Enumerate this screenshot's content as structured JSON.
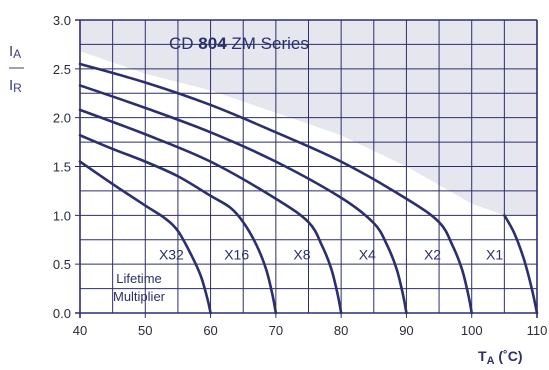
{
  "chart_data": {
    "type": "line",
    "title": "",
    "legend_box": {
      "prefix": "CD ",
      "bold": "804",
      "suffix": " ZM Series"
    },
    "xlabel_main": "T",
    "xlabel_sub": "A",
    "xlabel_unit": " (˚C)",
    "ylabel_top": "I",
    "ylabel_top_sub": "A",
    "ylabel_dash": "—",
    "ylabel_bottom": "I",
    "ylabel_bottom_sub": "R",
    "xlim": [
      40,
      110
    ],
    "ylim": [
      0,
      3
    ],
    "x_ticks": [
      "40",
      "50",
      "60",
      "70",
      "80",
      "90",
      "100",
      "110"
    ],
    "y_ticks": [
      "0.0",
      "0.5",
      "1.0",
      "1.5",
      "2.0",
      "2.5",
      "3.0"
    ],
    "grid": true,
    "note_lines": [
      "Lifetime",
      "Multiplier"
    ],
    "colors": {
      "curve": "#2c2f6d",
      "grid": "#2c2f6d",
      "shade": "#e6e6ee"
    },
    "shaded_boundary": {
      "x": [
        40,
        50,
        60,
        70,
        80,
        90,
        100,
        105
      ],
      "y": [
        2.68,
        2.45,
        2.28,
        2.05,
        1.82,
        1.5,
        1.12,
        1.0
      ]
    },
    "series": [
      {
        "name": "X32",
        "x": [
          40,
          45,
          50,
          53,
          55,
          57,
          58.5,
          59.5,
          60
        ],
        "y": [
          1.55,
          1.32,
          1.1,
          0.97,
          0.84,
          0.6,
          0.38,
          0.15,
          0.0
        ]
      },
      {
        "name": "X16",
        "x": [
          40,
          45,
          50,
          55,
          60,
          63,
          65,
          67,
          68.5,
          69.5,
          70
        ],
        "y": [
          1.82,
          1.68,
          1.55,
          1.4,
          1.2,
          1.08,
          0.93,
          0.7,
          0.45,
          0.18,
          0.0
        ]
      },
      {
        "name": "X8",
        "x": [
          40,
          50,
          60,
          70,
          75,
          77,
          78.5,
          79.5,
          80
        ],
        "y": [
          2.08,
          1.83,
          1.55,
          1.17,
          0.93,
          0.7,
          0.45,
          0.18,
          0.0
        ]
      },
      {
        "name": "X4",
        "x": [
          40,
          50,
          60,
          70,
          80,
          85,
          87,
          88.5,
          89.5,
          90
        ],
        "y": [
          2.33,
          2.1,
          1.85,
          1.55,
          1.18,
          0.92,
          0.7,
          0.45,
          0.18,
          0.0
        ]
      },
      {
        "name": "X2",
        "x": [
          40,
          50,
          60,
          70,
          80,
          90,
          95,
          97,
          98.5,
          99.5,
          100
        ],
        "y": [
          2.55,
          2.36,
          2.13,
          1.85,
          1.55,
          1.17,
          0.93,
          0.7,
          0.45,
          0.18,
          0.0
        ]
      },
      {
        "name": "X1",
        "x": [
          105,
          106.5,
          108,
          109.2,
          110
        ],
        "y": [
          1.0,
          0.82,
          0.55,
          0.25,
          0.0
        ]
      }
    ],
    "label_positions": {
      "X32": [
        54,
        0.6
      ],
      "X16": [
        64,
        0.6
      ],
      "X8": [
        74,
        0.6
      ],
      "X4": [
        84,
        0.6
      ],
      "X2": [
        94,
        0.6
      ],
      "X1": [
        103.5,
        0.6
      ]
    }
  }
}
